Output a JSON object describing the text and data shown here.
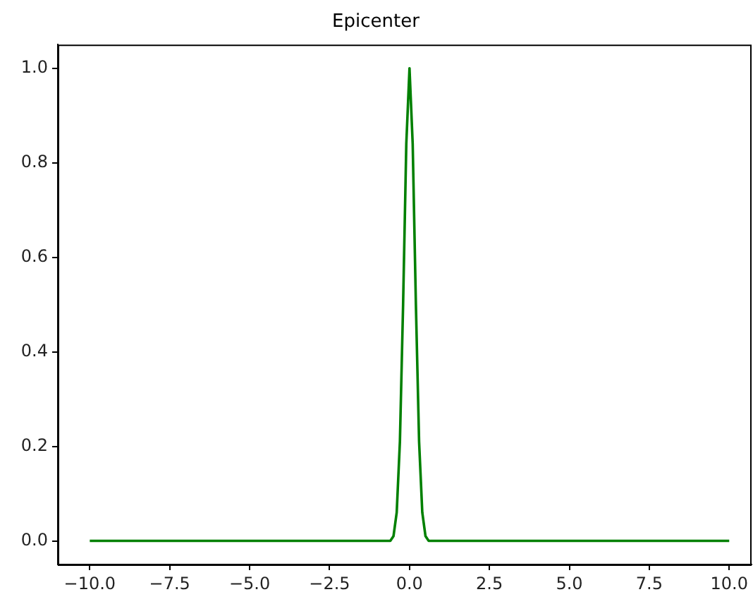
{
  "chart_data": {
    "type": "line",
    "title": "Epicenter",
    "x": [
      -10,
      -1,
      -0.6,
      -0.5,
      -0.4,
      -0.3,
      -0.2,
      -0.1,
      0,
      0.1,
      0.2,
      0.3,
      0.4,
      0.5,
      0.6,
      1,
      10
    ],
    "series": [
      {
        "color": "#008000",
        "values": [
          0,
          0,
          0,
          0.01,
          0.06,
          0.21,
          0.5,
          0.84,
          1,
          0.84,
          0.5,
          0.21,
          0.06,
          0.01,
          0,
          0,
          0
        ]
      }
    ],
    "xlim": [
      -11,
      10.7
    ],
    "xticks": [
      {
        "value": -10,
        "label": "−10.0"
      },
      {
        "value": -7.5,
        "label": "−7.5"
      },
      {
        "value": -5,
        "label": "−5.0"
      },
      {
        "value": -2.5,
        "label": "−2.5"
      },
      {
        "value": 0,
        "label": "0.0"
      },
      {
        "value": 2.5,
        "label": "2.5"
      },
      {
        "value": 5,
        "label": "5.0"
      },
      {
        "value": 7.5,
        "label": "7.5"
      },
      {
        "value": 10,
        "label": "10.0"
      }
    ],
    "ylim": [
      -0.05,
      1.05
    ],
    "yticks": [
      {
        "value": 0,
        "label": "0.0"
      },
      {
        "value": 0.2,
        "label": "0.2"
      },
      {
        "value": 0.4,
        "label": "0.4"
      },
      {
        "value": 0.6,
        "label": "0.6"
      },
      {
        "value": 0.8,
        "label": "0.8"
      },
      {
        "value": 1,
        "label": "1.0"
      }
    ],
    "grid": false,
    "legend": false,
    "marker": "none",
    "line_style": "solid"
  }
}
